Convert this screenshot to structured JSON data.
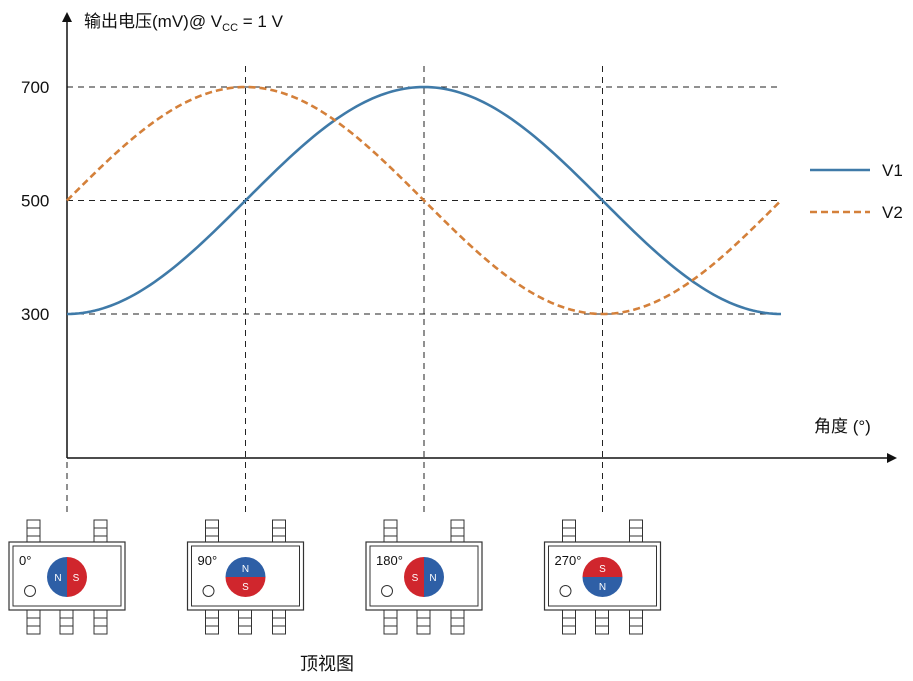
{
  "chart_data": {
    "type": "line",
    "ylabel_prefix": "输出电压(mV)@ V",
    "ylabel_sub": "CC",
    "ylabel_suffix": " = 1 V",
    "xlabel": "角度 (°)",
    "yticks": [
      300,
      500,
      700
    ],
    "x_markers_deg": [
      0,
      90,
      180,
      270
    ],
    "x_range_deg": [
      0,
      360
    ],
    "grid": "dashed at y ticks and x markers",
    "legend_position": "right",
    "series": [
      {
        "name": "V1",
        "style": "solid",
        "color": "#3f7aa8",
        "x": [
          0,
          30,
          60,
          90,
          120,
          150,
          180,
          210,
          240,
          270,
          300,
          330,
          360
        ],
        "y": [
          300,
          327,
          400,
          500,
          600,
          673,
          700,
          673,
          600,
          500,
          400,
          327,
          300
        ]
      },
      {
        "name": "V2",
        "style": "dashed",
        "color": "#d4803a",
        "x": [
          0,
          30,
          60,
          90,
          120,
          150,
          180,
          210,
          240,
          270,
          300,
          330,
          360
        ],
        "y": [
          500,
          600,
          673,
          700,
          673,
          600,
          500,
          400,
          327,
          300,
          327,
          400,
          500
        ]
      }
    ]
  },
  "packages": [
    {
      "angle_label": "0°",
      "rotation": 0
    },
    {
      "angle_label": "90°",
      "rotation": 90
    },
    {
      "angle_label": "180°",
      "rotation": 180
    },
    {
      "angle_label": "270°",
      "rotation": 270
    }
  ],
  "magnet": {
    "north_label": "N",
    "south_label": "S",
    "north_color": "#2e5fa6",
    "south_color": "#d0262d"
  },
  "caption": "顶视图"
}
